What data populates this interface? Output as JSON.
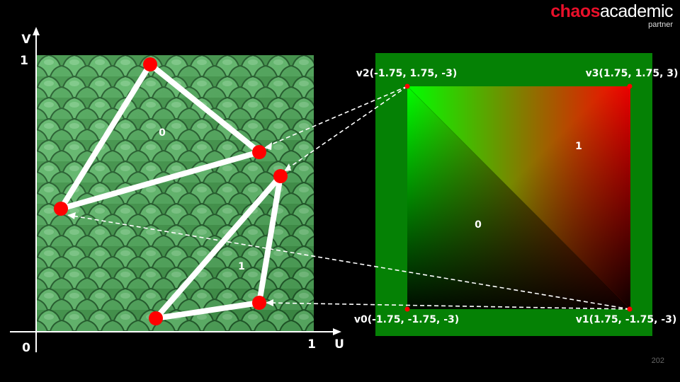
{
  "logo": {
    "brand": "chaos",
    "product": "academic",
    "sub": "partner"
  },
  "slide_number": "202",
  "uv_axes": {
    "v_label": "V",
    "u_label": "U",
    "origin_label": "0",
    "v_max_label": "1",
    "u_max_label": "1"
  },
  "uv_triangles": {
    "tri0_label": "0",
    "tri1_label": "1"
  },
  "quad": {
    "tri0_label": "0",
    "tri1_label": "1",
    "v0_label": "v0(-1.75, -1.75, -3)",
    "v1_label": "v1(1.75, -1.75, -3)",
    "v2_label": "v2(-1.75, 1.75, -3)",
    "v3_label": "v3(1.75, 1.75, 3)"
  },
  "colors": {
    "background": "#000000",
    "texture_green": "#3f9a48",
    "quad_frame": "#058105",
    "vertex_red": "#ff0000",
    "vertex_green": "#00ff00",
    "line_white": "#ffffff",
    "brand_red": "#e8102a"
  }
}
